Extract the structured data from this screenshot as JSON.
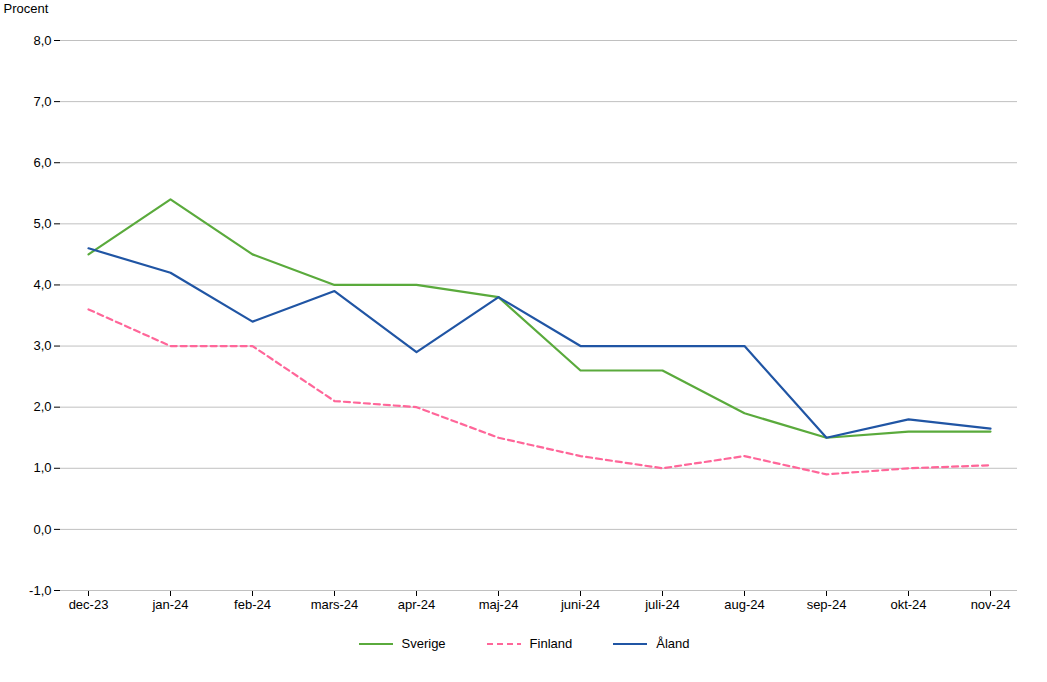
{
  "chart_data": {
    "type": "line",
    "ylabel": "Procent",
    "categories": [
      "dec-23",
      "jan-24",
      "feb-24",
      "mars-24",
      "apr-24",
      "maj-24",
      "juni-24",
      "juli-24",
      "aug-24",
      "sep-24",
      "okt-24",
      "nov-24"
    ],
    "series": [
      {
        "name": "Sverige",
        "color": "#5AAA3C",
        "line_style": "solid",
        "values": [
          4.5,
          5.4,
          4.5,
          4.0,
          4.0,
          3.8,
          2.6,
          2.6,
          1.9,
          1.5,
          1.6,
          1.6
        ]
      },
      {
        "name": "Finland",
        "color": "#FF6699",
        "line_style": "dashed",
        "values": [
          3.6,
          3.0,
          3.0,
          2.1,
          2.0,
          1.5,
          1.2,
          1.0,
          1.2,
          0.9,
          1.0,
          1.05
        ]
      },
      {
        "name": "Åland",
        "color": "#2055A4",
        "line_style": "solid",
        "values": [
          4.6,
          4.2,
          3.4,
          3.9,
          2.9,
          3.8,
          3.0,
          3.0,
          3.0,
          1.5,
          1.8,
          1.65
        ]
      }
    ],
    "ylim": [
      -1.0,
      8.0
    ],
    "yticks": [
      {
        "value": -1.0,
        "label": "-1,0"
      },
      {
        "value": 0.0,
        "label": "0,0"
      },
      {
        "value": 1.0,
        "label": "1,0"
      },
      {
        "value": 2.0,
        "label": "2,0"
      },
      {
        "value": 3.0,
        "label": "3,0"
      },
      {
        "value": 4.0,
        "label": "4,0"
      },
      {
        "value": 5.0,
        "label": "5,0"
      },
      {
        "value": 6.0,
        "label": "6,0"
      },
      {
        "value": 7.0,
        "label": "7,0"
      },
      {
        "value": 8.0,
        "label": "8,0"
      }
    ],
    "grid": true,
    "legend": "bottom"
  }
}
